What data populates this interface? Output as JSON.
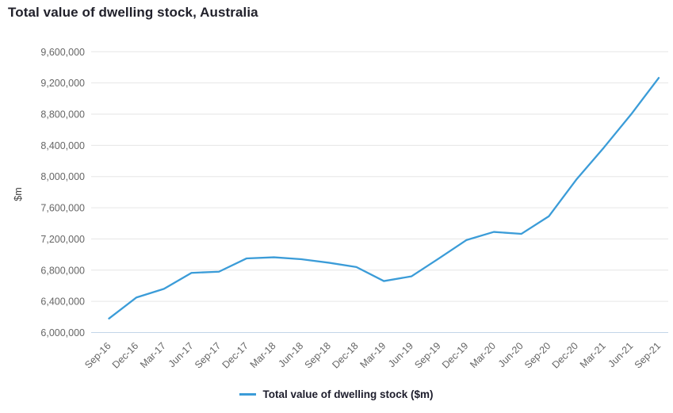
{
  "title": "Total value of dwelling stock, Australia",
  "legend": {
    "label": "Total value of dwelling stock ($m)"
  },
  "y_axis": {
    "title": "$m",
    "tick_labels": [
      "6,000,000",
      "6,400,000",
      "6,800,000",
      "7,200,000",
      "7,600,000",
      "8,000,000",
      "8,400,000",
      "8,800,000",
      "9,200,000",
      "9,600,000"
    ]
  },
  "colors": {
    "line": "#3b9cd8",
    "grid": "#e6e6e6",
    "axis_line": "#c3d5e8",
    "tick_text": "#666666",
    "axis_title_text": "#404040",
    "title_text": "#21212b"
  },
  "chart_data": {
    "type": "line",
    "title": "Total value of dwelling stock, Australia",
    "xlabel": "",
    "ylabel": "$m",
    "categories": [
      "Sep-16",
      "Dec-16",
      "Mar-17",
      "Jun-17",
      "Sep-17",
      "Dec-17",
      "Mar-18",
      "Jun-18",
      "Sep-18",
      "Dec-18",
      "Mar-19",
      "Jun-19",
      "Sep-19",
      "Dec-19",
      "Mar-20",
      "Jun-20",
      "Sep-20",
      "Dec-20",
      "Mar-21",
      "Jun-21",
      "Sep-21"
    ],
    "series": [
      {
        "name": "Total value of dwelling stock ($m)",
        "values": [
          6180000,
          6450000,
          6560000,
          6765000,
          6780000,
          6950000,
          6965000,
          6940000,
          6895000,
          6840000,
          6660000,
          6720000,
          6950000,
          7185000,
          7290000,
          7265000,
          7490000,
          7960000,
          8370000,
          8800000,
          9265000
        ]
      }
    ],
    "ylim": [
      6000000,
      9600000
    ],
    "ytick_step": 400000,
    "grid": "horizontal",
    "legend_position": "bottom",
    "x_label_rotation": -45
  }
}
